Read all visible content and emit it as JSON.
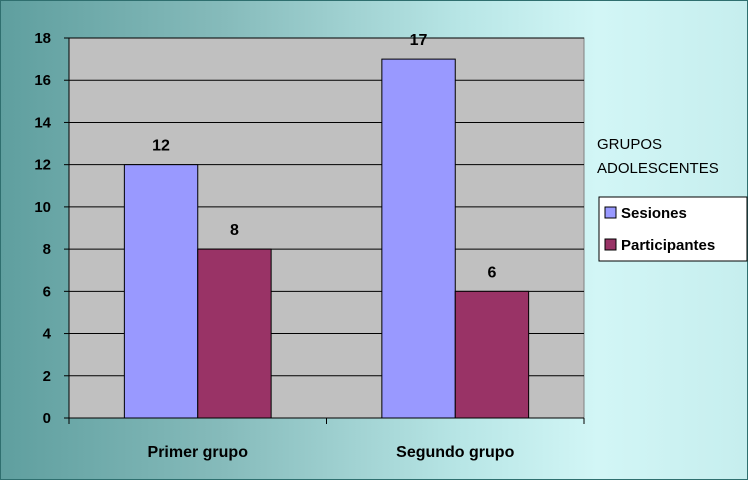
{
  "chart_data": {
    "type": "bar",
    "categories": [
      "Primer grupo",
      "Segundo grupo"
    ],
    "series": [
      {
        "name": "Sesiones",
        "values": [
          12,
          17
        ],
        "color": "#9999ff"
      },
      {
        "name": "Participantes",
        "values": [
          8,
          6
        ],
        "color": "#993366"
      }
    ],
    "ylim": [
      0,
      18
    ],
    "yticks": [
      0,
      2,
      4,
      6,
      8,
      10,
      12,
      14,
      16,
      18
    ],
    "legend_title": [
      "GRUPOS",
      "ADOLESCENTES"
    ],
    "legend_position": "right",
    "grid": true,
    "plot_background": "#c0c0c0"
  }
}
